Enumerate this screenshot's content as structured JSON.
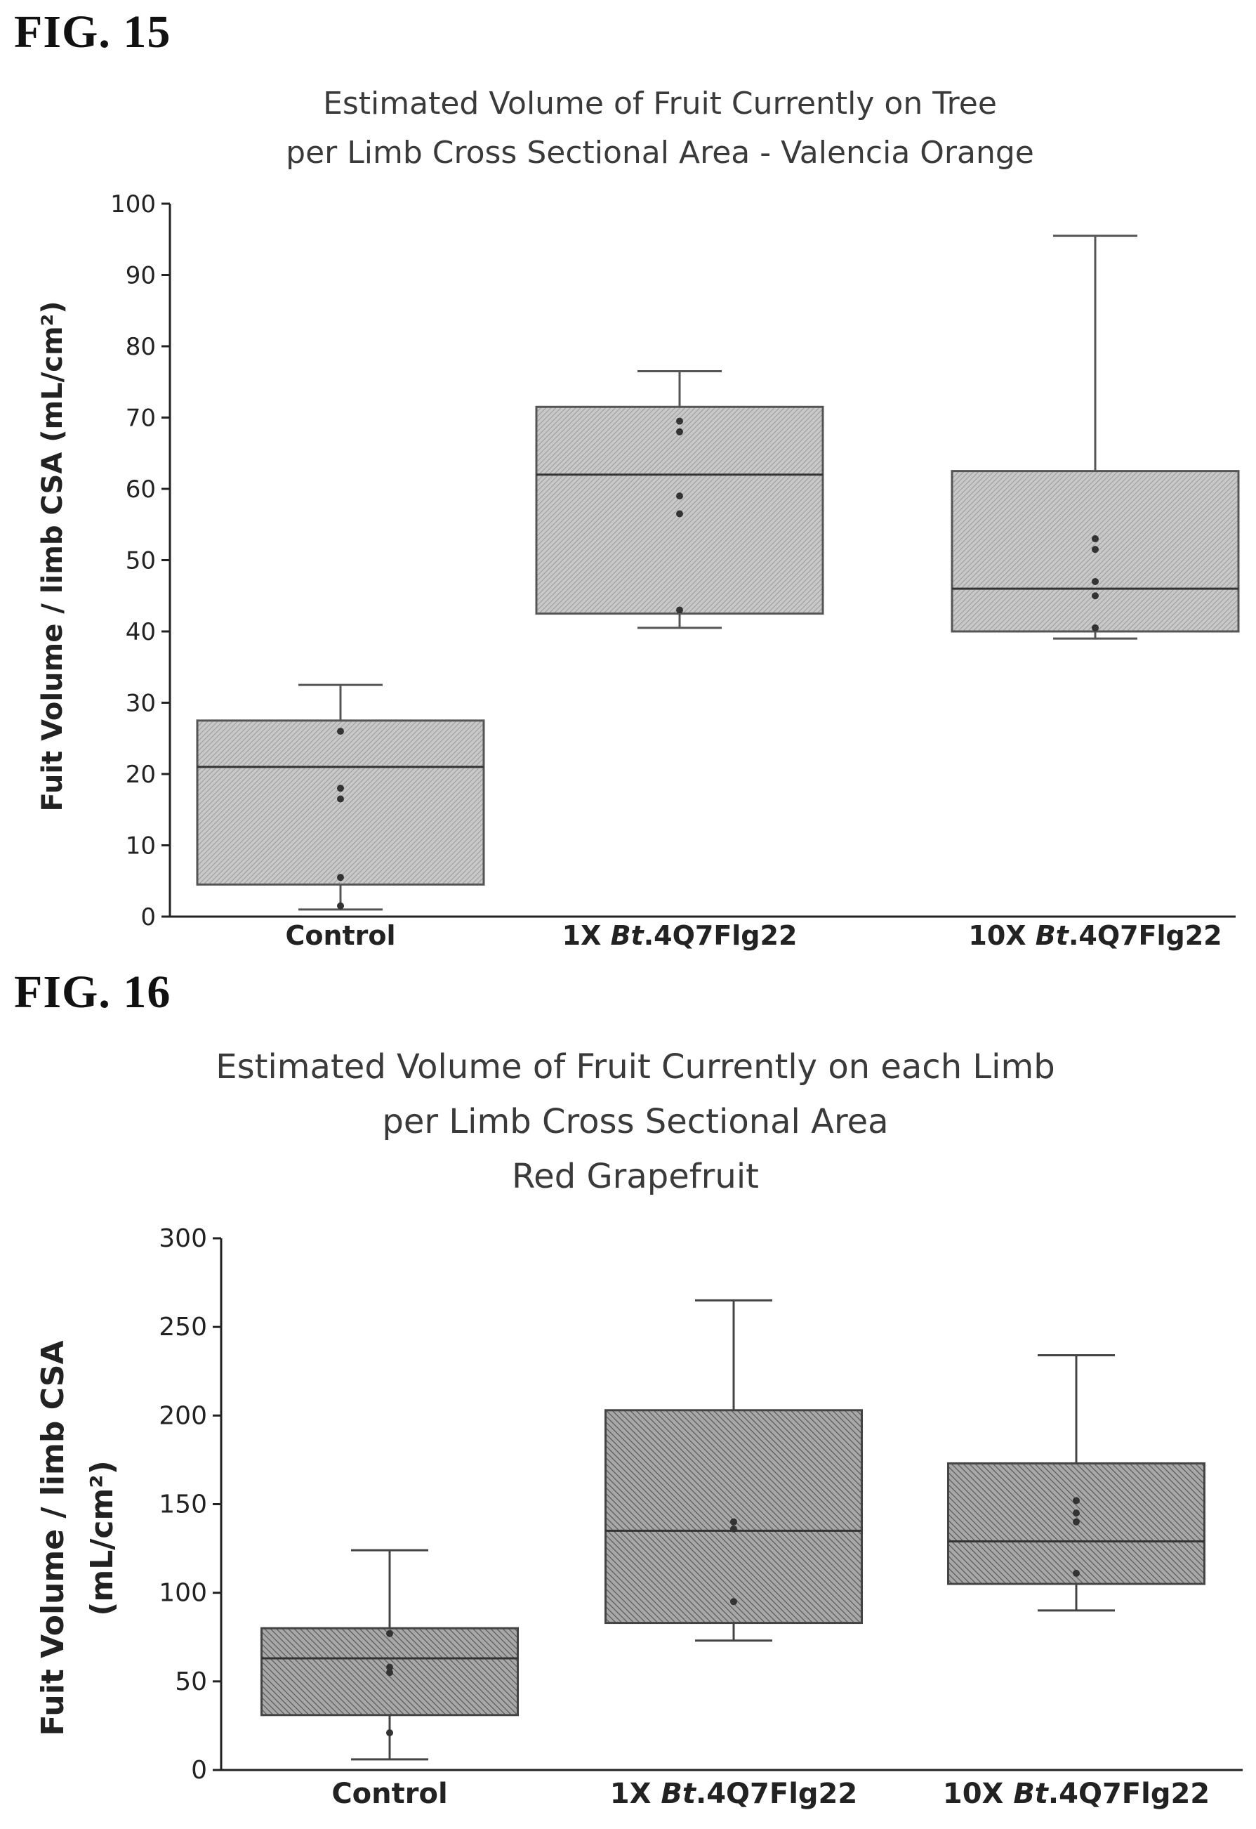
{
  "figures": [
    {
      "label": "FIG. 15"
    },
    {
      "label": "FIG. 16"
    }
  ],
  "chart_data": [
    {
      "type": "box",
      "title_lines": [
        "Estimated Volume of Fruit Currently on Tree",
        "per Limb Cross Sectional Area - Valencia Orange"
      ],
      "ylabel": "Fuit Volume / limb CSA (mL/cm²)",
      "ylim": [
        0,
        100
      ],
      "yticks": [
        "0",
        "10",
        "20",
        "30",
        "40",
        "50",
        "60",
        "70",
        "80",
        "90",
        "100"
      ],
      "categories": [
        {
          "prefix": "Control",
          "italic": "",
          "suffix": ""
        },
        {
          "prefix": "1X ",
          "italic": "Bt",
          "suffix": ".4Q7Flg22"
        },
        {
          "prefix": "10X ",
          "italic": "Bt",
          "suffix": ".4Q7Flg22"
        }
      ],
      "boxes": [
        {
          "min": 1,
          "q1": 4.5,
          "median": 21,
          "q3": 27.5,
          "max": 32.5,
          "points": [
            26,
            18,
            16.5,
            5.5,
            1.5
          ]
        },
        {
          "min": 40.5,
          "q1": 42.5,
          "median": 62,
          "q3": 71.5,
          "max": 76.5,
          "points": [
            69.5,
            68,
            59,
            56.5,
            43
          ]
        },
        {
          "min": 39,
          "q1": 40,
          "median": 46,
          "q3": 62.5,
          "max": 95.5,
          "points": [
            53,
            51.5,
            47,
            45,
            40.5
          ]
        }
      ],
      "fill_color": "#bdbdbd",
      "line_color": "#555555"
    },
    {
      "type": "box",
      "title_lines": [
        "Estimated Volume of Fruit Currently on each Limb",
        "per Limb Cross Sectional Area",
        "Red Grapefruit"
      ],
      "ylabel_lines": [
        "Fuit Volume / limb CSA",
        "(mL/cm²)"
      ],
      "ylim": [
        0,
        300
      ],
      "yticks": [
        "0",
        "50",
        "100",
        "150",
        "200",
        "250",
        "300"
      ],
      "categories": [
        {
          "prefix": "Control",
          "italic": "",
          "suffix": ""
        },
        {
          "prefix": "1X ",
          "italic": "Bt",
          "suffix": ".4Q7Flg22"
        },
        {
          "prefix": "10X ",
          "italic": "Bt",
          "suffix": ".4Q7Flg22"
        }
      ],
      "boxes": [
        {
          "min": 6,
          "q1": 31,
          "median": 63,
          "q3": 80,
          "max": 124,
          "points": [
            77,
            58,
            55,
            21
          ]
        },
        {
          "min": 73,
          "q1": 83,
          "median": 135,
          "q3": 203,
          "max": 265,
          "points": [
            140,
            136,
            95
          ]
        },
        {
          "min": 90,
          "q1": 105,
          "median": 129,
          "q3": 173,
          "max": 234,
          "points": [
            152,
            145,
            140,
            111
          ]
        }
      ],
      "fill_color": "#8c8c8c",
      "line_color": "#444444"
    }
  ]
}
